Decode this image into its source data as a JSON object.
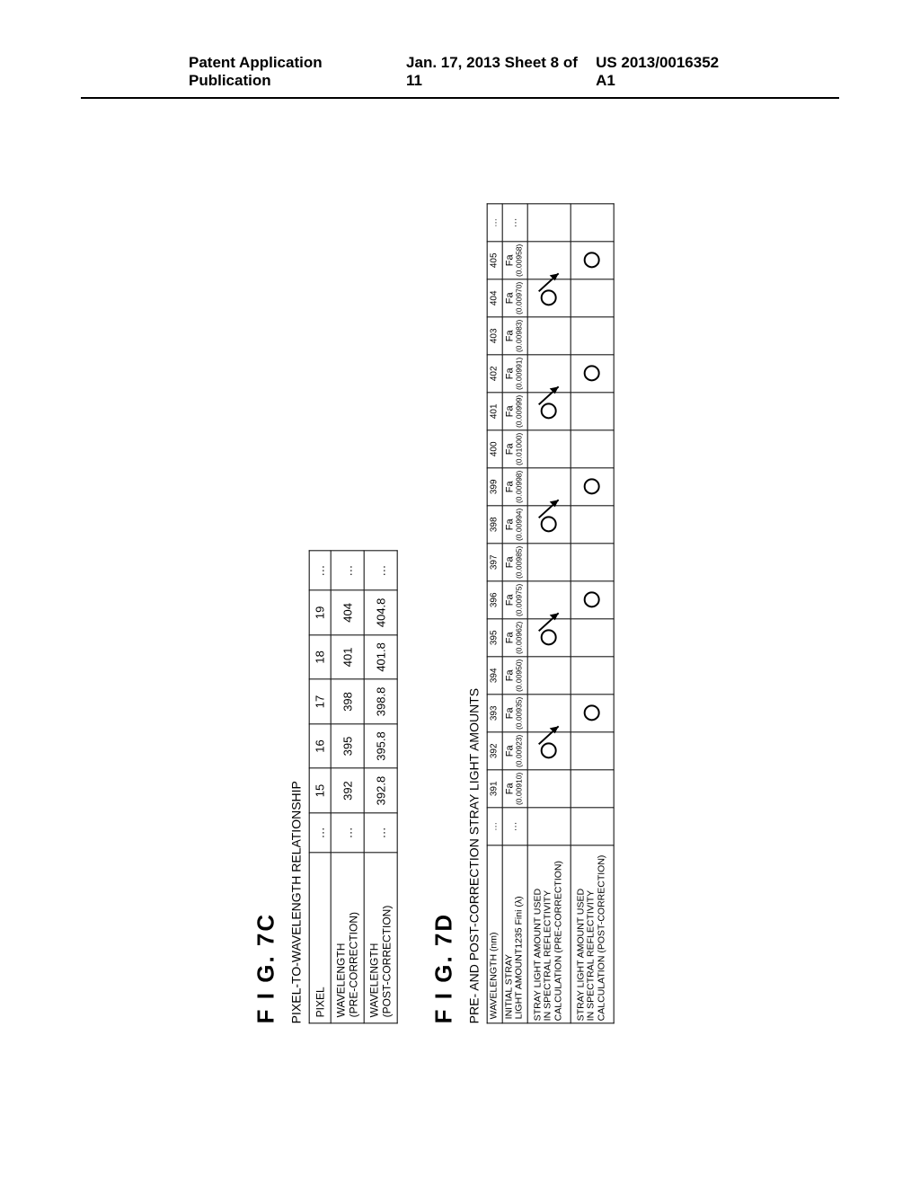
{
  "header": {
    "left": "Patent Application Publication",
    "center": "Jan. 17, 2013  Sheet 8 of 11",
    "right": "US 2013/0016352 A1"
  },
  "fig7c": {
    "label": "F I G.  7C",
    "caption": "PIXEL-TO-WAVELENGTH RELATIONSHIP",
    "rows": {
      "pixel": "PIXEL",
      "pre": "WAVELENGTH\n(PRE-CORRECTION)",
      "post": "WAVELENGTH\n(POST-CORRECTION)"
    },
    "cols": [
      "…",
      "15",
      "16",
      "17",
      "18",
      "19",
      "…"
    ],
    "pre_vals": [
      "…",
      "392",
      "395",
      "398",
      "401",
      "404",
      "…"
    ],
    "post_vals": [
      "…",
      "392.8",
      "395.8",
      "398.8",
      "401.8",
      "404.8",
      "…"
    ]
  },
  "fig7d": {
    "label": "F I G.  7D",
    "caption": "PRE- AND POST-CORRECTION STRAY LIGHT AMOUNTS",
    "row_labels": {
      "wavelength": "WAVELENGTH (nm)",
      "initial": "INITIAL STRAY\nLIGHT AMOUNT1235 Fini (λ)",
      "pre": "STRAY LIGHT AMOUNT USED\nIN SPECTRAL REFLECTIVITY\nCALCULATION (PRE-CORRECTION)",
      "post": "STRAY LIGHT AMOUNT USED\nIN SPECTRAL REFLECTIVITY\nCALCULATION (POST-CORRECTION)"
    },
    "wavelengths": [
      "…",
      "391",
      "392",
      "393",
      "394",
      "395",
      "396",
      "397",
      "398",
      "399",
      "400",
      "401",
      "402",
      "403",
      "404",
      "405",
      "…"
    ],
    "fa_label": "Fa",
    "fa_values": [
      "…",
      "(0.00910)",
      "(0.00923)",
      "(0.00935)",
      "(0.00950)",
      "(0.00962)",
      "(0.00975)",
      "(0.00985)",
      "(0.00994)",
      "(0.00998)",
      "(0.01000)",
      "(0.00999)",
      "(0.00991)",
      "(0.00983)",
      "(0.00970)",
      "(0.00958)",
      "…"
    ],
    "pre_circles": [
      false,
      false,
      true,
      false,
      false,
      true,
      false,
      false,
      true,
      false,
      false,
      true,
      false,
      false,
      true,
      false,
      false
    ],
    "post_circles": [
      false,
      false,
      false,
      true,
      false,
      false,
      true,
      false,
      false,
      true,
      false,
      false,
      true,
      false,
      false,
      true,
      false
    ]
  },
  "style": {
    "border_color": "#000000",
    "background_color": "#ffffff"
  }
}
